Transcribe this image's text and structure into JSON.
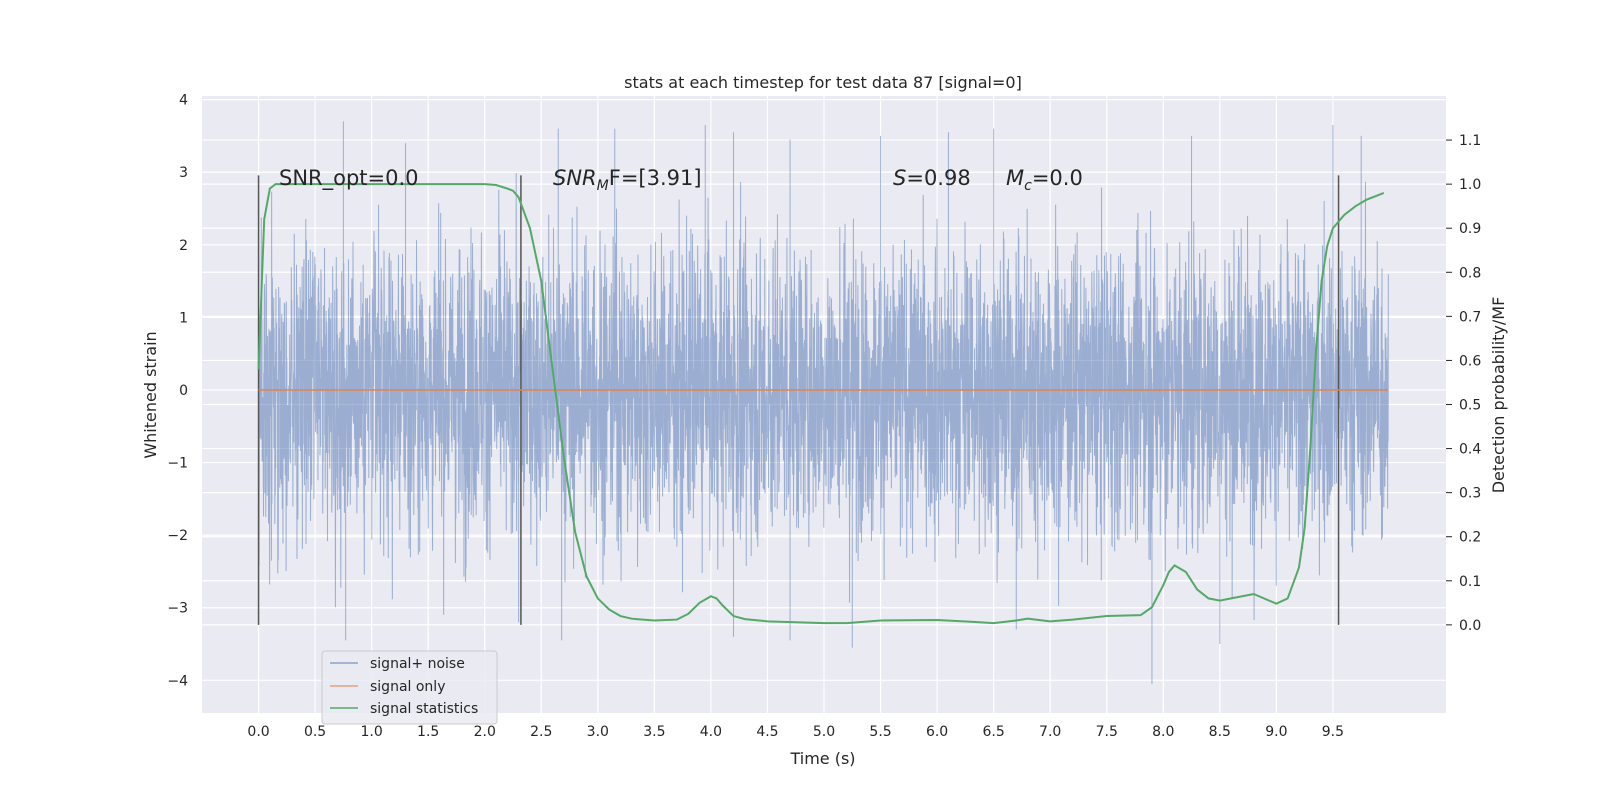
{
  "chart_data": {
    "type": "line",
    "title": "stats at each timestep for test data 87 [signal=0]",
    "xlabel": "Time (s)",
    "ylabel": "Whitened strain",
    "y2label": "Detection probability/MF",
    "xlim": [
      -0.5,
      10.5
    ],
    "ylim": [
      -4.45,
      4.05
    ],
    "y2lim": [
      -0.2,
      1.2
    ],
    "xticks": [
      "0.0",
      "0.5",
      "1.0",
      "1.5",
      "2.0",
      "2.5",
      "3.0",
      "3.5",
      "4.0",
      "4.5",
      "5.0",
      "5.5",
      "6.0",
      "6.5",
      "7.0",
      "7.5",
      "8.0",
      "8.5",
      "9.0",
      "9.5"
    ],
    "yticks": [
      "4",
      "3",
      "2",
      "1",
      "0",
      "−1",
      "−2",
      "−3",
      "−4"
    ],
    "y2ticks": [
      "1.1",
      "1.0",
      "0.9",
      "0.8",
      "0.7",
      "0.6",
      "0.5",
      "0.4",
      "0.3",
      "0.2",
      "0.1",
      "0.0"
    ],
    "grid": true,
    "legend_position": "lower-left",
    "annotations": {
      "snr_opt": "SNR_opt=0.0",
      "snr_mf_name": "SNR",
      "snr_mf_sub": "M",
      "snr_mf_rest": "F=[3.91]",
      "s_name": "S",
      "s_rest": "=0.98",
      "mc_name": "M",
      "mc_sub": "c",
      "mc_rest": "=0.0"
    },
    "window_markers_x": [
      0.0,
      2.32,
      9.55
    ],
    "series": [
      {
        "name": "signal+ noise",
        "color": "#4c72b0",
        "x_range": [
          0.0,
          9.99
        ],
        "typical_amplitude": 1.6,
        "peak_values": [
          [
            0.75,
            3.7
          ],
          [
            0.77,
            -3.45
          ],
          [
            1.3,
            3.4
          ],
          [
            2.3,
            -3.2
          ],
          [
            2.65,
            3.6
          ],
          [
            2.68,
            -3.45
          ],
          [
            3.15,
            3.6
          ],
          [
            3.95,
            3.65
          ],
          [
            4.2,
            3.55
          ],
          [
            4.2,
            -3.4
          ],
          [
            4.7,
            3.45
          ],
          [
            4.7,
            -3.45
          ],
          [
            5.25,
            -3.55
          ],
          [
            5.5,
            3.5
          ],
          [
            6.1,
            3.55
          ],
          [
            6.5,
            3.6
          ],
          [
            6.7,
            -3.3
          ],
          [
            7.9,
            -4.05
          ],
          [
            8.25,
            3.5
          ],
          [
            8.5,
            -3.5
          ],
          [
            9.5,
            3.65
          ],
          [
            9.75,
            3.5
          ]
        ]
      },
      {
        "name": "signal only",
        "color": "#dd8452",
        "x": [
          0.0,
          9.99
        ],
        "y": [
          0.0,
          0.0
        ]
      },
      {
        "name": "signal statistics",
        "color": "#55a868",
        "axis": "right",
        "x": [
          0.0,
          0.05,
          0.1,
          0.15,
          0.2,
          0.3,
          0.5,
          1.0,
          1.5,
          1.8,
          2.0,
          2.1,
          2.2,
          2.25,
          2.3,
          2.4,
          2.5,
          2.6,
          2.7,
          2.8,
          2.9,
          3.0,
          3.1,
          3.2,
          3.3,
          3.5,
          3.7,
          3.8,
          3.9,
          4.0,
          4.05,
          4.1,
          4.2,
          4.3,
          4.5,
          5.0,
          5.2,
          5.5,
          6.0,
          6.3,
          6.5,
          6.7,
          6.8,
          7.0,
          7.2,
          7.5,
          7.8,
          7.9,
          8.0,
          8.05,
          8.1,
          8.2,
          8.3,
          8.4,
          8.5,
          8.6,
          8.8,
          9.0,
          9.1,
          9.2,
          9.25,
          9.3,
          9.35,
          9.4,
          9.45,
          9.5,
          9.6,
          9.7,
          9.8,
          9.9,
          9.95
        ],
        "y": [
          0.58,
          0.92,
          0.99,
          1.0,
          1.0,
          1.0,
          1.0,
          1.0,
          1.0,
          1.0,
          1.0,
          0.998,
          0.99,
          0.985,
          0.97,
          0.9,
          0.78,
          0.58,
          0.38,
          0.21,
          0.11,
          0.06,
          0.035,
          0.02,
          0.014,
          0.01,
          0.012,
          0.025,
          0.05,
          0.065,
          0.06,
          0.045,
          0.02,
          0.013,
          0.008,
          0.004,
          0.004,
          0.01,
          0.011,
          0.007,
          0.004,
          0.01,
          0.014,
          0.008,
          0.012,
          0.02,
          0.022,
          0.04,
          0.09,
          0.12,
          0.135,
          0.12,
          0.08,
          0.06,
          0.055,
          0.06,
          0.07,
          0.048,
          0.06,
          0.13,
          0.22,
          0.4,
          0.62,
          0.78,
          0.86,
          0.9,
          0.93,
          0.95,
          0.965,
          0.975,
          0.98
        ]
      }
    ]
  }
}
